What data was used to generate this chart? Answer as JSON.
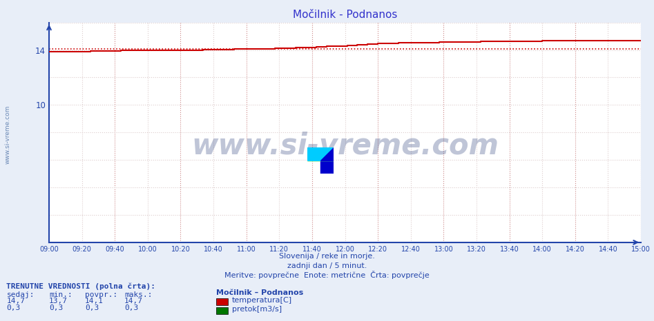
{
  "title": "Močilnik - Podnanos",
  "title_color": "#3333cc",
  "bg_color": "#e8eef8",
  "plot_bg_color": "#ffffff",
  "xlabel_line1": "Slovenija / reke in morje.",
  "xlabel_line2": "zadnji dan / 5 minut.",
  "xlabel_line3": "Meritve: povprečne  Enote: metrične  Črta: povprečje",
  "xtick_labels": [
    "09:00",
    "09:20",
    "09:40",
    "10:00",
    "10:20",
    "10:40",
    "11:00",
    "11:20",
    "11:40",
    "12:00",
    "12:20",
    "12:40",
    "13:00",
    "13:20",
    "13:40",
    "14:00",
    "14:20",
    "14:40",
    "15:00"
  ],
  "ymin": 0,
  "ymax": 16.0,
  "yticks": [
    10,
    14
  ],
  "temp_color": "#cc0000",
  "avg_line_value": 14.1,
  "watermark_text": "www.si-vreme.com",
  "watermark_color": "#1a3070",
  "sidebar_text": "www.si-vreme.com",
  "sidebar_color": "#5577aa",
  "bottom_label1": "TRENUTNE VREDNOSTI (polna črta):",
  "bottom_headers": [
    "sedaj:",
    "min.:",
    "povpr.:",
    "maks.:"
  ],
  "bottom_row1_vals": [
    "14,7",
    "13,7",
    "14,1",
    "14,7"
  ],
  "bottom_row2_vals": [
    "0,3",
    "0,3",
    "0,3",
    "0,3"
  ],
  "bottom_station": "Močilnik – Podnanos",
  "bottom_legend1": "temperatura[C]",
  "bottom_legend2": "pretok[m3/s]",
  "legend_color1": "#cc0000",
  "legend_color2": "#007700",
  "axis_color": "#2244aa",
  "grid_main_color": "#cc8888",
  "grid_minor_color": "#ddcccc",
  "temp_breakpoints": [
    [
      0,
      13.88
    ],
    [
      19,
      13.88
    ],
    [
      20,
      13.91
    ],
    [
      24,
      13.91
    ],
    [
      25,
      13.93
    ],
    [
      29,
      13.93
    ],
    [
      30,
      13.95
    ],
    [
      34,
      13.95
    ],
    [
      35,
      13.97
    ],
    [
      44,
      13.97
    ],
    [
      45,
      13.98
    ],
    [
      59,
      13.98
    ],
    [
      60,
      14.0
    ],
    [
      74,
      14.0
    ],
    [
      75,
      14.02
    ],
    [
      84,
      14.02
    ],
    [
      85,
      14.04
    ],
    [
      89,
      14.04
    ],
    [
      90,
      14.06
    ],
    [
      99,
      14.06
    ],
    [
      100,
      14.08
    ],
    [
      104,
      14.08
    ],
    [
      105,
      14.1
    ],
    [
      109,
      14.1
    ],
    [
      110,
      14.12
    ],
    [
      114,
      14.12
    ],
    [
      115,
      14.15
    ],
    [
      119,
      14.15
    ],
    [
      120,
      14.18
    ],
    [
      124,
      14.18
    ],
    [
      125,
      14.2
    ],
    [
      129,
      14.2
    ],
    [
      130,
      14.23
    ],
    [
      134,
      14.23
    ],
    [
      135,
      14.26
    ],
    [
      139,
      14.26
    ],
    [
      140,
      14.3
    ],
    [
      144,
      14.3
    ],
    [
      145,
      14.35
    ],
    [
      149,
      14.35
    ],
    [
      150,
      14.4
    ],
    [
      154,
      14.4
    ],
    [
      155,
      14.44
    ],
    [
      159,
      14.44
    ],
    [
      160,
      14.47
    ],
    [
      164,
      14.47
    ],
    [
      165,
      14.5
    ],
    [
      169,
      14.5
    ],
    [
      170,
      14.52
    ],
    [
      179,
      14.52
    ],
    [
      180,
      14.55
    ],
    [
      189,
      14.55
    ],
    [
      190,
      14.58
    ],
    [
      199,
      14.58
    ],
    [
      200,
      14.6
    ],
    [
      209,
      14.6
    ],
    [
      210,
      14.62
    ],
    [
      219,
      14.62
    ],
    [
      220,
      14.65
    ],
    [
      239,
      14.65
    ],
    [
      240,
      14.67
    ],
    [
      259,
      14.67
    ],
    [
      260,
      14.7
    ],
    [
      287,
      14.7
    ]
  ]
}
